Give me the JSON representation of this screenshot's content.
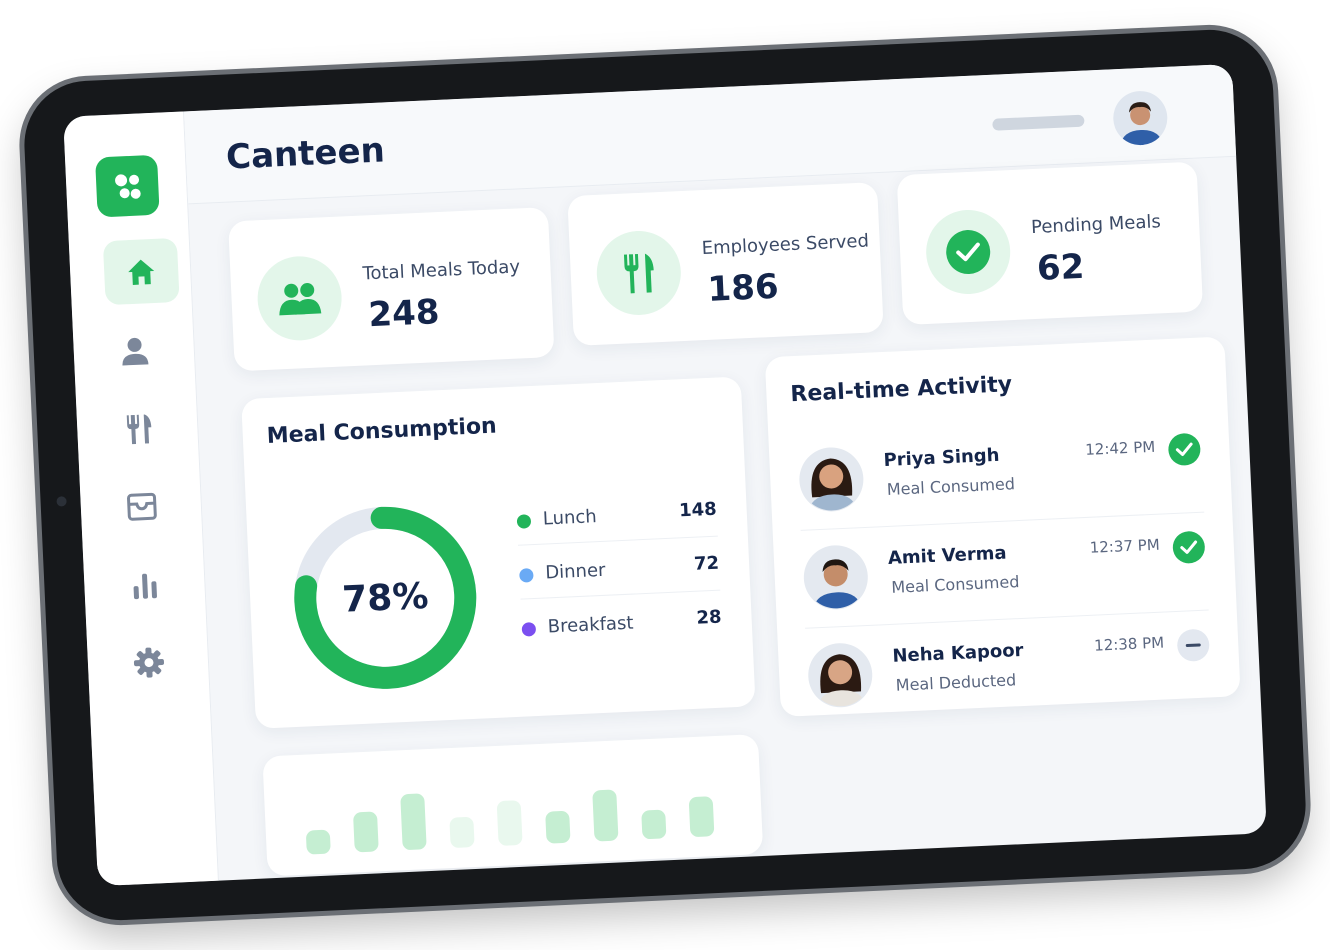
{
  "header": {
    "title": "Canteen"
  },
  "stats": [
    {
      "label": "Total Meals Today",
      "value": 248
    },
    {
      "label": "Employees Served",
      "value": 186
    },
    {
      "label": "Pending Meals",
      "value": 62
    }
  ],
  "meal_consumption": {
    "title": "Meal Consumption",
    "donut": {
      "value": 78,
      "label": "78%",
      "color": "#22b45a",
      "track_color": "#e3e8f0"
    },
    "legend": [
      {
        "name": "Lunch",
        "value": 148,
        "color": "#22b45a"
      },
      {
        "name": "Dinner",
        "value": 72,
        "color": "#6aaaf5"
      },
      {
        "name": "Breakfast",
        "value": 28,
        "color": "#7b4ff0"
      }
    ]
  },
  "activity": {
    "title": "Real-time Activity",
    "items": [
      {
        "name": "Priya Singh",
        "status": "Meal Consumed",
        "time": "12:42 PM"
      },
      {
        "name": "Amit Verma",
        "status": "Meal Consumed",
        "time": "12:37 PM"
      },
      {
        "name": "Neha Kapoor",
        "status": "Meal Deducted",
        "time": "12:38 PM"
      }
    ]
  },
  "mini_chart": {
    "values": [
      30,
      50,
      70,
      38,
      56,
      40,
      64,
      36,
      50
    ],
    "color": "#bfeccd"
  }
}
